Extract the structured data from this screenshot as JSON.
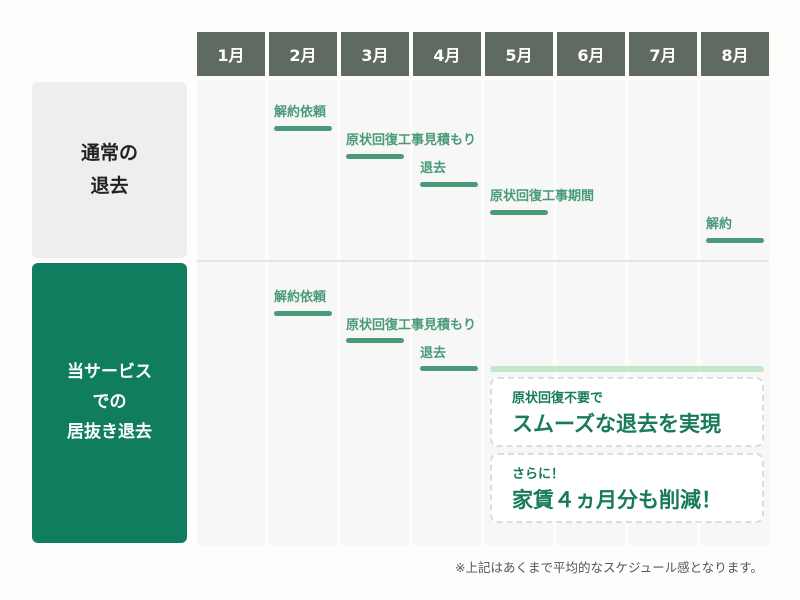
{
  "months": [
    "1月",
    "2月",
    "3月",
    "4月",
    "5月",
    "6月",
    "7月",
    "8月"
  ],
  "rows": {
    "normal": {
      "label_line1": "通常の",
      "label_line2": "退去",
      "steps": [
        {
          "label": "解約依頼",
          "month": "2月"
        },
        {
          "label": "原状回復工事見積もり",
          "month": "3月"
        },
        {
          "label": "退去",
          "month": "4月"
        },
        {
          "label": "原状回復工事期間",
          "month": "5月"
        },
        {
          "label": "解約",
          "month": "8月"
        }
      ]
    },
    "service": {
      "label_line1": "当サービス",
      "label_line2": "での",
      "label_line3": "居抜き退去",
      "steps": [
        {
          "label": "解約依頼",
          "month": "2月"
        },
        {
          "label": "原状回復工事見積もり",
          "month": "3月"
        },
        {
          "label": "退去",
          "month": "4月"
        }
      ],
      "highlight_range": [
        "5月",
        "8月"
      ],
      "callouts": [
        {
          "small": "原状回復不要で",
          "big": "スムーズな退去を実現"
        },
        {
          "small": "さらに！",
          "big": "家賃４ヵ月分も削減！"
        }
      ]
    }
  },
  "footnote": "※上記はあくまで平均的なスケジュール感となります。",
  "colors": {
    "header": "#5f6a63",
    "accent": "#0f7d5e",
    "bar": "#4a9a78",
    "highlight": "#c6e6cc"
  }
}
